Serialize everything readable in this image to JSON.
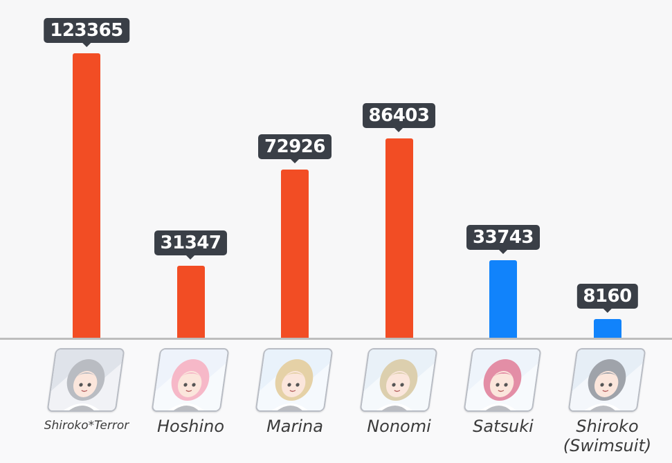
{
  "chart_data": {
    "type": "bar",
    "categories": [
      "Shiroko*Terror",
      "Hoshino",
      "Marina",
      "Nonomi",
      "Satsuki",
      "Shiroko\n(Swimsuit)"
    ],
    "values": [
      123365,
      31347,
      72926,
      86403,
      33743,
      8160
    ],
    "bar_colors": [
      "#f24d24",
      "#f24d24",
      "#f24d24",
      "#f24d24",
      "#1183fb",
      "#1183fb"
    ],
    "ylim": [
      0,
      140000
    ],
    "grid": false,
    "legend": "none",
    "title": "",
    "xlabel": "",
    "ylabel": ""
  },
  "portraits": [
    {
      "icon": "character-portrait-shiroko-terror",
      "hair": "#b9bcc2",
      "bg": "#dfe3ea"
    },
    {
      "icon": "character-portrait-hoshino",
      "hair": "#f6b8c8",
      "bg": "#eef3fb"
    },
    {
      "icon": "character-portrait-marina",
      "hair": "#e5d1a6",
      "bg": "#e9f2fb"
    },
    {
      "icon": "character-portrait-nonomi",
      "hair": "#dccfae",
      "bg": "#e9f1f8"
    },
    {
      "icon": "character-portrait-satsuki",
      "hair": "#e38ea6",
      "bg": "#eef4fb"
    },
    {
      "icon": "character-portrait-shiroko-swimsuit",
      "hair": "#9fa3aa",
      "bg": "#e6eef6"
    }
  ]
}
